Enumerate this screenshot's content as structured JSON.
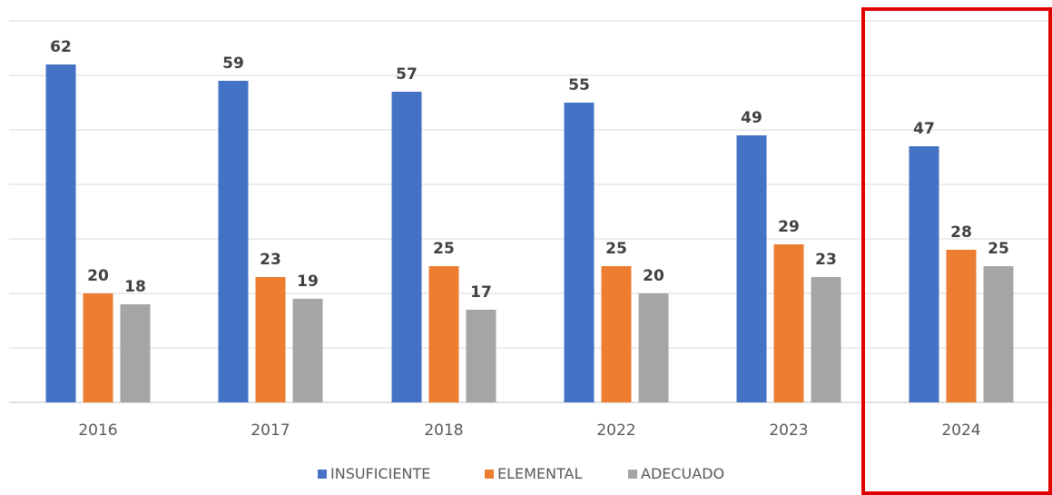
{
  "chart_data": {
    "type": "bar",
    "categories": [
      "2016",
      "2017",
      "2018",
      "2022",
      "2023",
      "2024"
    ],
    "series": [
      {
        "name": "INSUFICIENTE",
        "color": "#4472C4",
        "values": [
          62,
          59,
          57,
          55,
          49,
          47
        ]
      },
      {
        "name": "ELEMENTAL",
        "color": "#ED7D31",
        "values": [
          20,
          23,
          25,
          25,
          29,
          28
        ]
      },
      {
        "name": "ADECUADO",
        "color": "#A5A5A5",
        "values": [
          18,
          19,
          17,
          20,
          23,
          25
        ]
      }
    ],
    "ylim": [
      0,
      70
    ],
    "grid": true,
    "legend_position": "bottom",
    "highlight": {
      "category": "2024",
      "color": "#E00000"
    }
  }
}
